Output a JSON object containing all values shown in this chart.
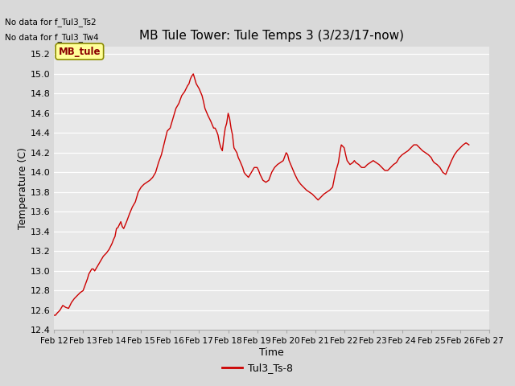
{
  "title": "MB Tule Tower: Tule Temps 3 (3/23/17-now)",
  "xlabel": "Time",
  "ylabel": "Temperature (C)",
  "no_data_text": [
    "No data for f_Tul3_Ts2",
    "No data for f_Tul3_Tw4"
  ],
  "legend_label": "Tul3_Ts-8",
  "mb_tule_label": "MB_tule",
  "line_color": "#cc0000",
  "bg_color": "#d9d9d9",
  "plot_bg_color": "#e8e8e8",
  "ylim": [
    12.4,
    15.28
  ],
  "yticks": [
    12.4,
    12.6,
    12.8,
    13.0,
    13.2,
    13.4,
    13.6,
    13.8,
    14.0,
    14.2,
    14.4,
    14.6,
    14.8,
    15.0,
    15.2
  ],
  "xtick_labels": [
    "Feb 12",
    "Feb 13",
    "Feb 14",
    "Feb 15",
    "Feb 16",
    "Feb 17",
    "Feb 18",
    "Feb 19",
    "Feb 20",
    "Feb 21",
    "Feb 22",
    "Feb 23",
    "Feb 24",
    "Feb 25",
    "Feb 26",
    "Feb 27"
  ],
  "temperature_data": [
    [
      0.0,
      12.55
    ],
    [
      0.05,
      12.55
    ],
    [
      0.1,
      12.57
    ],
    [
      0.2,
      12.6
    ],
    [
      0.3,
      12.65
    ],
    [
      0.4,
      12.63
    ],
    [
      0.5,
      12.62
    ],
    [
      0.6,
      12.68
    ],
    [
      0.7,
      12.72
    ],
    [
      0.8,
      12.75
    ],
    [
      0.9,
      12.78
    ],
    [
      1.0,
      12.8
    ],
    [
      1.1,
      12.88
    ],
    [
      1.15,
      12.92
    ],
    [
      1.2,
      12.97
    ],
    [
      1.3,
      13.02
    ],
    [
      1.35,
      13.02
    ],
    [
      1.4,
      13.0
    ],
    [
      1.5,
      13.05
    ],
    [
      1.6,
      13.1
    ],
    [
      1.7,
      13.15
    ],
    [
      1.8,
      13.18
    ],
    [
      1.9,
      13.22
    ],
    [
      2.0,
      13.28
    ],
    [
      2.05,
      13.32
    ],
    [
      2.1,
      13.35
    ],
    [
      2.15,
      13.43
    ],
    [
      2.2,
      13.44
    ],
    [
      2.25,
      13.47
    ],
    [
      2.3,
      13.5
    ],
    [
      2.35,
      13.45
    ],
    [
      2.4,
      13.43
    ],
    [
      2.5,
      13.5
    ],
    [
      2.6,
      13.58
    ],
    [
      2.7,
      13.65
    ],
    [
      2.8,
      13.7
    ],
    [
      2.9,
      13.8
    ],
    [
      3.0,
      13.85
    ],
    [
      3.1,
      13.88
    ],
    [
      3.2,
      13.9
    ],
    [
      3.3,
      13.92
    ],
    [
      3.4,
      13.95
    ],
    [
      3.5,
      14.0
    ],
    [
      3.6,
      14.1
    ],
    [
      3.7,
      14.18
    ],
    [
      3.8,
      14.3
    ],
    [
      3.9,
      14.42
    ],
    [
      4.0,
      14.45
    ],
    [
      4.1,
      14.55
    ],
    [
      4.2,
      14.65
    ],
    [
      4.3,
      14.7
    ],
    [
      4.4,
      14.78
    ],
    [
      4.5,
      14.82
    ],
    [
      4.6,
      14.88
    ],
    [
      4.65,
      14.9
    ],
    [
      4.7,
      14.95
    ],
    [
      4.75,
      14.98
    ],
    [
      4.8,
      15.0
    ],
    [
      4.85,
      14.95
    ],
    [
      4.9,
      14.9
    ],
    [
      5.0,
      14.85
    ],
    [
      5.1,
      14.78
    ],
    [
      5.15,
      14.72
    ],
    [
      5.2,
      14.65
    ],
    [
      5.3,
      14.58
    ],
    [
      5.4,
      14.52
    ],
    [
      5.5,
      14.45
    ],
    [
      5.55,
      14.45
    ],
    [
      5.6,
      14.42
    ],
    [
      5.65,
      14.38
    ],
    [
      5.7,
      14.3
    ],
    [
      5.75,
      14.25
    ],
    [
      5.8,
      14.22
    ],
    [
      5.85,
      14.35
    ],
    [
      5.9,
      14.45
    ],
    [
      5.95,
      14.5
    ],
    [
      6.0,
      14.6
    ],
    [
      6.05,
      14.55
    ],
    [
      6.1,
      14.45
    ],
    [
      6.15,
      14.38
    ],
    [
      6.2,
      14.25
    ],
    [
      6.3,
      14.2
    ],
    [
      6.35,
      14.15
    ],
    [
      6.4,
      14.12
    ],
    [
      6.5,
      14.05
    ],
    [
      6.55,
      14.0
    ],
    [
      6.6,
      13.98
    ],
    [
      6.7,
      13.95
    ],
    [
      6.8,
      14.0
    ],
    [
      6.9,
      14.05
    ],
    [
      7.0,
      14.05
    ],
    [
      7.05,
      14.02
    ],
    [
      7.1,
      13.98
    ],
    [
      7.2,
      13.92
    ],
    [
      7.3,
      13.9
    ],
    [
      7.4,
      13.92
    ],
    [
      7.5,
      14.0
    ],
    [
      7.6,
      14.05
    ],
    [
      7.7,
      14.08
    ],
    [
      7.8,
      14.1
    ],
    [
      7.9,
      14.12
    ],
    [
      8.0,
      14.2
    ],
    [
      8.05,
      14.18
    ],
    [
      8.1,
      14.12
    ],
    [
      8.2,
      14.05
    ],
    [
      8.3,
      13.98
    ],
    [
      8.4,
      13.92
    ],
    [
      8.5,
      13.88
    ],
    [
      8.6,
      13.85
    ],
    [
      8.7,
      13.82
    ],
    [
      8.8,
      13.8
    ],
    [
      8.9,
      13.78
    ],
    [
      9.0,
      13.75
    ],
    [
      9.1,
      13.72
    ],
    [
      9.2,
      13.75
    ],
    [
      9.3,
      13.78
    ],
    [
      9.4,
      13.8
    ],
    [
      9.5,
      13.82
    ],
    [
      9.6,
      13.85
    ],
    [
      9.7,
      14.0
    ],
    [
      9.8,
      14.1
    ],
    [
      9.85,
      14.2
    ],
    [
      9.9,
      14.28
    ],
    [
      10.0,
      14.25
    ],
    [
      10.05,
      14.18
    ],
    [
      10.1,
      14.12
    ],
    [
      10.2,
      14.08
    ],
    [
      10.3,
      14.1
    ],
    [
      10.35,
      14.12
    ],
    [
      10.4,
      14.1
    ],
    [
      10.5,
      14.08
    ],
    [
      10.6,
      14.05
    ],
    [
      10.7,
      14.05
    ],
    [
      10.8,
      14.08
    ],
    [
      10.9,
      14.1
    ],
    [
      11.0,
      14.12
    ],
    [
      11.1,
      14.1
    ],
    [
      11.2,
      14.08
    ],
    [
      11.3,
      14.05
    ],
    [
      11.4,
      14.02
    ],
    [
      11.5,
      14.02
    ],
    [
      11.6,
      14.05
    ],
    [
      11.7,
      14.08
    ],
    [
      11.8,
      14.1
    ],
    [
      11.9,
      14.15
    ],
    [
      12.0,
      14.18
    ],
    [
      12.1,
      14.2
    ],
    [
      12.2,
      14.22
    ],
    [
      12.3,
      14.25
    ],
    [
      12.4,
      14.28
    ],
    [
      12.5,
      14.28
    ],
    [
      12.6,
      14.25
    ],
    [
      12.7,
      14.22
    ],
    [
      12.8,
      14.2
    ],
    [
      12.9,
      14.18
    ],
    [
      13.0,
      14.15
    ],
    [
      13.05,
      14.12
    ],
    [
      13.1,
      14.1
    ],
    [
      13.2,
      14.08
    ],
    [
      13.3,
      14.05
    ],
    [
      13.4,
      14.0
    ],
    [
      13.5,
      13.98
    ],
    [
      13.6,
      14.05
    ],
    [
      13.7,
      14.12
    ],
    [
      13.8,
      14.18
    ],
    [
      13.9,
      14.22
    ],
    [
      14.0,
      14.25
    ],
    [
      14.1,
      14.28
    ],
    [
      14.2,
      14.3
    ],
    [
      14.3,
      14.28
    ]
  ]
}
